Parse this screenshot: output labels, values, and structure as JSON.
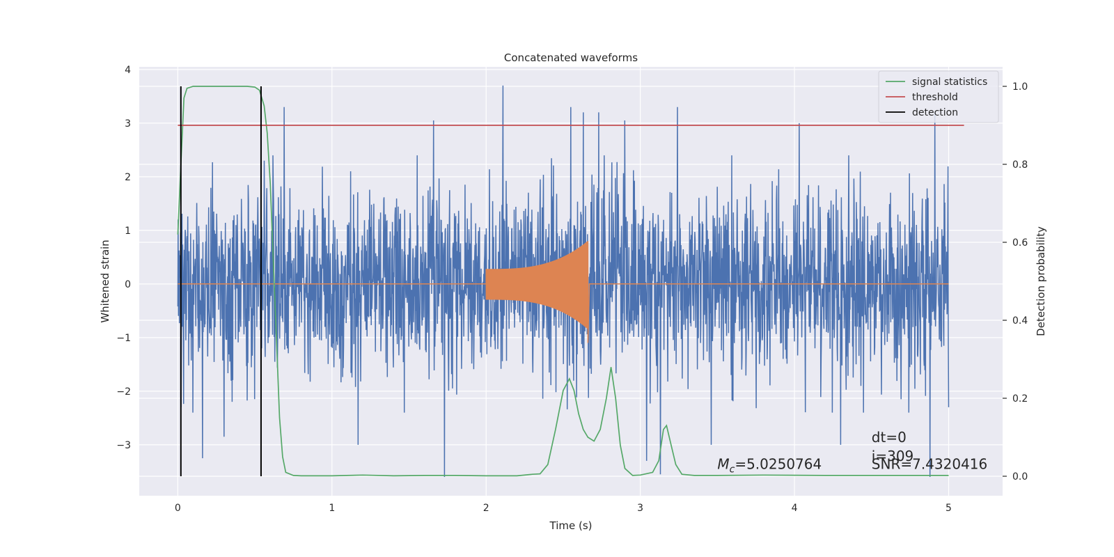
{
  "chart_data": {
    "type": "line",
    "title": "Concatenated waveforms",
    "xlabel": "Time (s)",
    "ylabel": "Whitened strain",
    "y2label": "Detection probability",
    "xlim": [
      -0.25,
      5.35
    ],
    "ylim": [
      -3.95,
      4.05
    ],
    "y2lim": [
      -0.05,
      1.05
    ],
    "xticks": [
      0,
      1,
      2,
      3,
      4,
      5
    ],
    "xtick_labels": [
      "0",
      "1",
      "2",
      "3",
      "4",
      "5"
    ],
    "yticks": [
      -3,
      -2,
      -1,
      0,
      1,
      2,
      3,
      4
    ],
    "ytick_labels": [
      "−3",
      "−2",
      "−1",
      "0",
      "1",
      "2",
      "3",
      "4"
    ],
    "y2ticks": [
      0.0,
      0.2,
      0.4,
      0.6,
      0.8,
      1.0
    ],
    "y2tick_labels": [
      "0.0",
      "0.2",
      "0.4",
      "0.6",
      "0.8",
      "1.0"
    ],
    "grid": true,
    "legend_position": "top-right",
    "legend": [
      {
        "label": "signal statistics",
        "color": "#55a868"
      },
      {
        "label": "threshold",
        "color": "#c44e52"
      },
      {
        "label": "detection",
        "color": "#000000"
      }
    ],
    "series": [
      {
        "name": "signal statistics",
        "axis": "right",
        "color": "#55a868",
        "x": [
          0.0,
          0.02,
          0.04,
          0.06,
          0.1,
          0.15,
          0.2,
          0.3,
          0.4,
          0.45,
          0.5,
          0.53,
          0.56,
          0.58,
          0.6,
          0.62,
          0.64,
          0.66,
          0.68,
          0.7,
          0.75,
          0.8,
          1.0,
          1.2,
          1.4,
          1.6,
          1.8,
          2.0,
          2.2,
          2.3,
          2.35,
          2.4,
          2.45,
          2.5,
          2.54,
          2.57,
          2.6,
          2.63,
          2.66,
          2.7,
          2.74,
          2.78,
          2.81,
          2.84,
          2.87,
          2.9,
          2.95,
          3.0,
          3.08,
          3.12,
          3.15,
          3.17,
          3.2,
          3.23,
          3.27,
          3.35,
          3.5,
          3.8,
          4.2,
          4.6,
          5.0
        ],
        "y": [
          0.62,
          0.8,
          0.97,
          0.995,
          1.0,
          1.0,
          1.0,
          1.0,
          1.0,
          1.0,
          0.998,
          0.99,
          0.95,
          0.88,
          0.75,
          0.55,
          0.35,
          0.15,
          0.05,
          0.01,
          0.002,
          0.001,
          0.001,
          0.003,
          0.001,
          0.002,
          0.002,
          0.001,
          0.001,
          0.005,
          0.006,
          0.03,
          0.12,
          0.22,
          0.25,
          0.22,
          0.16,
          0.12,
          0.1,
          0.09,
          0.12,
          0.2,
          0.28,
          0.2,
          0.08,
          0.02,
          0.002,
          0.003,
          0.01,
          0.04,
          0.12,
          0.13,
          0.08,
          0.03,
          0.005,
          0.002,
          0.002,
          0.003,
          0.002,
          0.002,
          0.002
        ]
      },
      {
        "name": "threshold",
        "axis": "right",
        "color": "#c44e52",
        "x": [
          0.0,
          5.1
        ],
        "y": [
          0.9,
          0.9
        ]
      }
    ],
    "noise": {
      "axis": "left",
      "color": "#4c72b0",
      "x_range": [
        0.0,
        5.0
      ],
      "peaks": [
        {
          "x": 0.02,
          "y": -2.3
        },
        {
          "x": 0.16,
          "y": -3.25
        },
        {
          "x": 0.3,
          "y": -2.85
        },
        {
          "x": 0.56,
          "y": 2.3
        },
        {
          "x": 0.69,
          "y": 3.3
        },
        {
          "x": 1.17,
          "y": -3.0
        },
        {
          "x": 1.66,
          "y": 3.05
        },
        {
          "x": 1.73,
          "y": -3.6
        },
        {
          "x": 2.11,
          "y": 3.7
        },
        {
          "x": 2.55,
          "y": 3.3
        },
        {
          "x": 2.63,
          "y": 3.2
        },
        {
          "x": 2.73,
          "y": 3.2
        },
        {
          "x": 2.9,
          "y": 3.05
        },
        {
          "x": 3.04,
          "y": -3.3
        },
        {
          "x": 3.13,
          "y": -3.55
        },
        {
          "x": 3.24,
          "y": 3.3
        },
        {
          "x": 3.46,
          "y": -3.0
        },
        {
          "x": 4.03,
          "y": 3.0
        },
        {
          "x": 4.3,
          "y": -3.0
        },
        {
          "x": 4.88,
          "y": -3.6
        },
        {
          "x": 4.91,
          "y": 3.2
        },
        {
          "x": 5.0,
          "y": -2.3
        }
      ]
    },
    "injected_waveform": {
      "axis": "left",
      "color": "#dd8452",
      "x_range": [
        2.0,
        2.66
      ],
      "amplitude_start": 0.28,
      "amplitude_peak": 0.8,
      "amplitude_peak_negative": -1.1
    },
    "detections": [
      0.02,
      0.54
    ],
    "annotations": [
      {
        "text": "$M_c$=5.0250764",
        "display": "=5.0250764",
        "symbol": "M",
        "subscript": "c",
        "x": 3.5,
        "y": -3.45
      },
      {
        "text": "dt=0",
        "x": 4.5,
        "y": -2.95
      },
      {
        "text": "i=309",
        "x": 4.5,
        "y": -3.3
      },
      {
        "text": "SNR=7.4320416",
        "x": 4.5,
        "y": -3.45
      }
    ]
  }
}
